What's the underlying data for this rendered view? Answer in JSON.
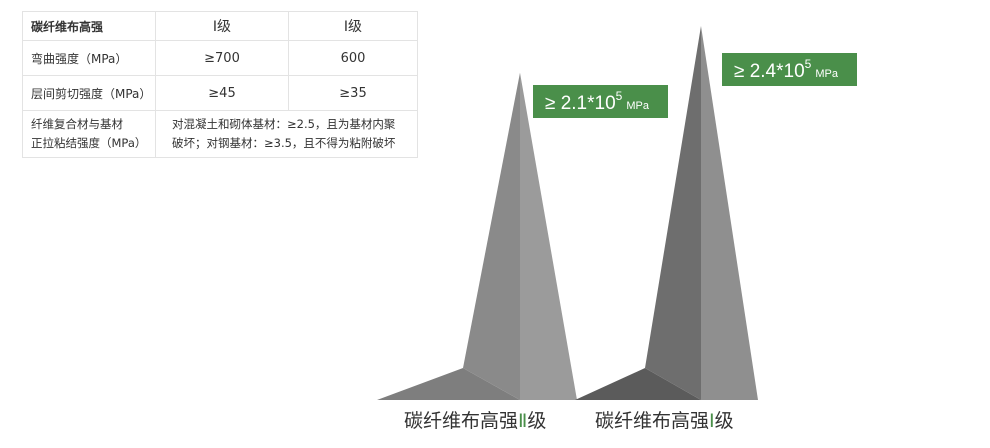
{
  "table": {
    "header": [
      "碳纤维布高强",
      "Ⅰ级",
      "Ⅰ级"
    ],
    "rows": [
      {
        "label": "弯曲强度（MPa）",
        "values": [
          "≥700",
          "600"
        ]
      },
      {
        "label": "层间剪切强度（MPa）",
        "values": [
          "≥45",
          "≥35"
        ]
      }
    ],
    "bond_row": {
      "label_lines": [
        "纤维复合材与基材",
        "正拉粘结强度（MPa）"
      ],
      "note_lines": [
        "对混凝土和砌体基材：≥2.5，且为基材内聚",
        "破坏；对钢基材：≥3.5，且不得为粘附破坏"
      ]
    }
  },
  "chart_data": {
    "type": "bar",
    "categories": [
      "碳纤维布高强Ⅱ级",
      "碳纤维布高强Ⅰ级"
    ],
    "category_parts": [
      {
        "prefix": "碳纤维布高强",
        "grade": "Ⅱ",
        "suffix": "级"
      },
      {
        "prefix": "碳纤维布高强",
        "grade": "Ⅰ",
        "suffix": "级"
      }
    ],
    "values": [
      210000,
      240000
    ],
    "value_labels": [
      {
        "prefix": "≥ 2.1*10",
        "exp": "5",
        "unit": "MPa"
      },
      {
        "prefix": "≥ 2.4*10",
        "exp": "5",
        "unit": "MPa"
      }
    ],
    "ylim": [
      0,
      240000
    ],
    "colors": {
      "label_bg": "#4a8f4a",
      "grade_green": "#4a8f4a",
      "left_face_1": "#8a8a8a",
      "right_face_1": "#9b9b9b",
      "base_1": "#7e7e7e",
      "left_face_2": "#6e6e6e",
      "right_face_2": "#8f8f8f",
      "base_2": "#5b5b5b"
    }
  }
}
